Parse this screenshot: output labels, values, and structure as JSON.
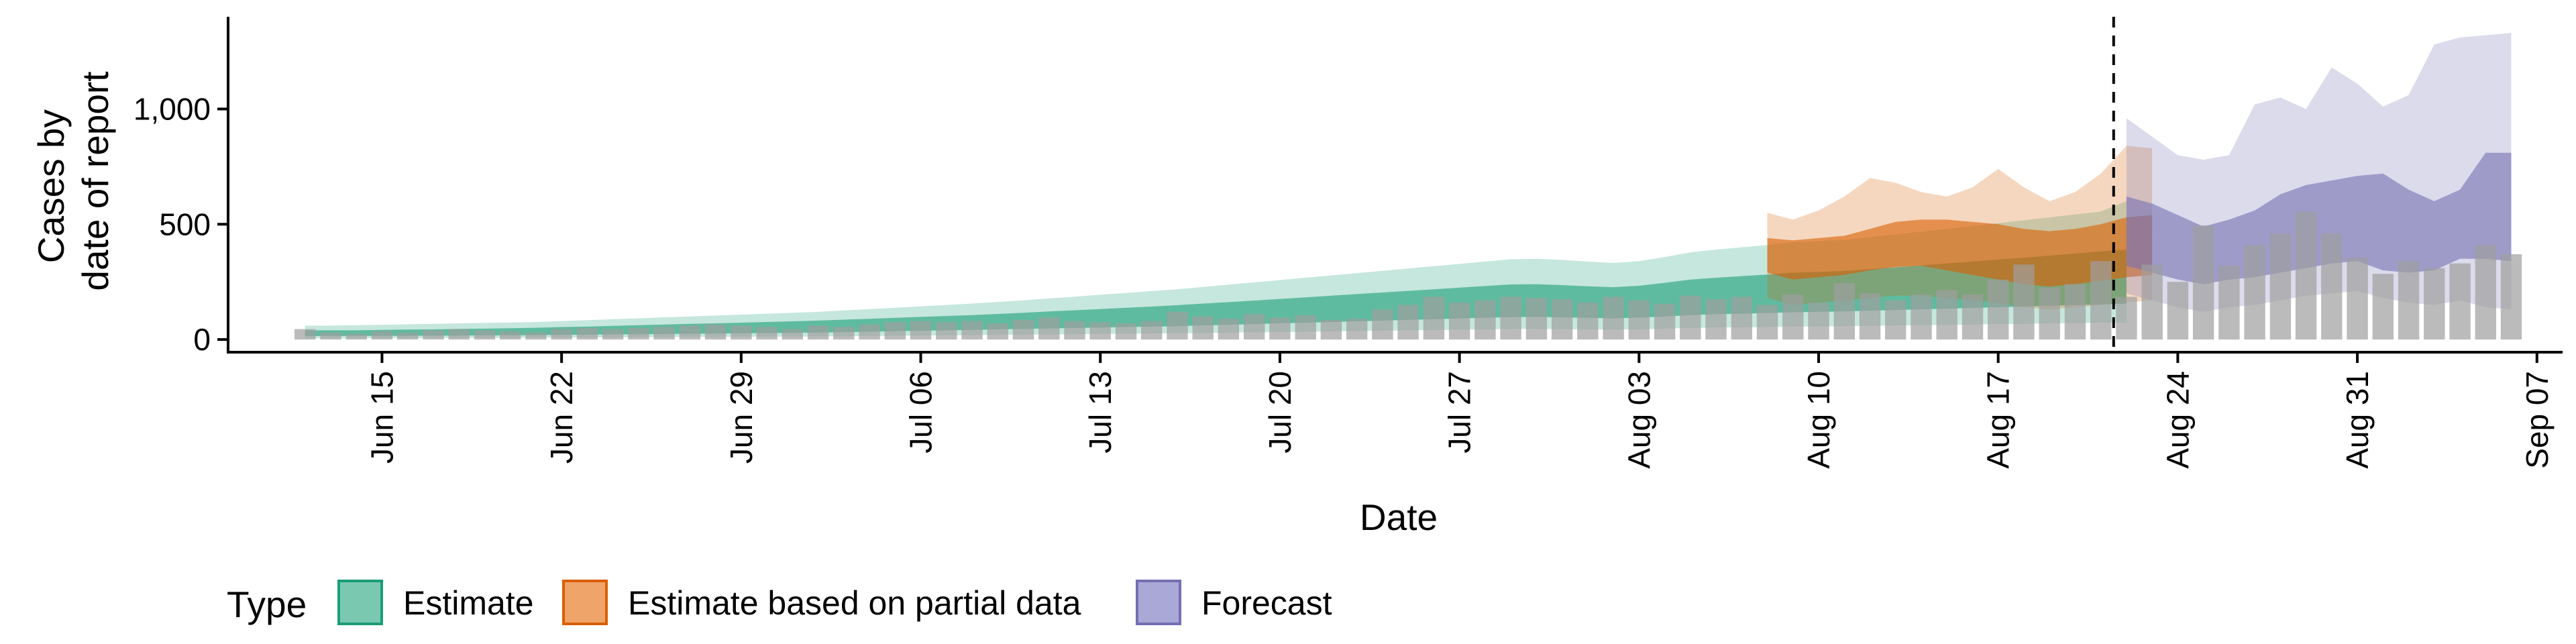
{
  "chart_data": {
    "type": "area",
    "title": "",
    "xlabel": "Date",
    "ylabel_lines": [
      "Cases by",
      "date of report"
    ],
    "ylim": [
      -55,
      1400
    ],
    "yticks": [
      0,
      500,
      1000
    ],
    "ytick_labels": [
      "0",
      "500",
      "1,000"
    ],
    "x_range": [
      "2020-06-09",
      "2020-09-08"
    ],
    "xtick_dates": [
      "2020-06-15",
      "2020-06-22",
      "2020-06-29",
      "2020-07-06",
      "2020-07-13",
      "2020-07-20",
      "2020-07-27",
      "2020-08-03",
      "2020-08-10",
      "2020-08-17",
      "2020-08-24",
      "2020-08-31",
      "2020-09-07"
    ],
    "xtick_labels": [
      "Jun 15",
      "Jun 22",
      "Jun 29",
      "Jul 06",
      "Jul 13",
      "Jul 20",
      "Jul 27",
      "Aug 03",
      "Aug 10",
      "Aug 17",
      "Aug 24",
      "Aug 31",
      "Sep 07"
    ],
    "forecast_start": "2020-08-21",
    "legend": {
      "title": "Type",
      "position": "bottom",
      "entries": [
        {
          "label": "Estimate",
          "fill": "#7BC8B0",
          "stroke": "#1B9E77"
        },
        {
          "label": "Estimate based on partial data",
          "fill": "#EFA46A",
          "stroke": "#D95F02"
        },
        {
          "label": "Forecast",
          "fill": "#AAA8D6",
          "stroke": "#7570B3"
        }
      ]
    },
    "reported_cases": {
      "start": "2020-06-12",
      "color": "#9E9E9E",
      "values": [
        45,
        30,
        25,
        35,
        30,
        40,
        45,
        40,
        35,
        30,
        45,
        50,
        45,
        50,
        55,
        60,
        65,
        60,
        55,
        45,
        60,
        55,
        65,
        75,
        80,
        75,
        80,
        70,
        85,
        95,
        80,
        75,
        70,
        80,
        120,
        100,
        90,
        110,
        95,
        105,
        85,
        90,
        130,
        150,
        185,
        160,
        170,
        185,
        180,
        175,
        160,
        185,
        170,
        155,
        190,
        175,
        185,
        150,
        195,
        160,
        245,
        200,
        170,
        195,
        215,
        195,
        260,
        325,
        225,
        240,
        340,
        185,
        325,
        250,
        495,
        320,
        410,
        460,
        555,
        460,
        355,
        285,
        340,
        310,
        330,
        410,
        370
      ]
    },
    "series": [
      {
        "name": "Estimate",
        "start": "2020-06-12",
        "color": "#1B9E77",
        "inner_alpha": 0.6,
        "outer_alpha": 0.25,
        "median": [
          30,
          30,
          30,
          31,
          32,
          33,
          34,
          35,
          36,
          38,
          40,
          42,
          44,
          46,
          48,
          50,
          52,
          54,
          56,
          58,
          60,
          63,
          66,
          69,
          72,
          75,
          78,
          82,
          86,
          90,
          94,
          98,
          102,
          106,
          110,
          115,
          120,
          125,
          130,
          135,
          140,
          145,
          150,
          155,
          160,
          165,
          170,
          175,
          175,
          172,
          168,
          165,
          170,
          180,
          190,
          195,
          200,
          205,
          210,
          212,
          215,
          220,
          225,
          230,
          235,
          240,
          245,
          250,
          255,
          260,
          265,
          270
        ],
        "lower50": [
          15,
          15,
          15,
          16,
          16,
          17,
          17,
          18,
          18,
          19,
          20,
          21,
          22,
          23,
          24,
          25,
          26,
          27,
          28,
          29,
          30,
          32,
          34,
          36,
          38,
          40,
          42,
          44,
          46,
          48,
          50,
          52,
          54,
          56,
          58,
          61,
          64,
          67,
          70,
          73,
          76,
          79,
          82,
          85,
          88,
          91,
          94,
          97,
          98,
          96,
          94,
          92,
          95,
          100,
          106,
          110,
          112,
          115,
          118,
          120,
          122,
          125,
          128,
          131,
          134,
          137,
          140,
          143,
          146,
          149,
          152,
          155
        ],
        "upper50": [
          40,
          40,
          40,
          42,
          43,
          44,
          46,
          47,
          49,
          51,
          54,
          56,
          59,
          62,
          65,
          68,
          70,
          73,
          76,
          79,
          82,
          86,
          90,
          94,
          98,
          102,
          106,
          111,
          116,
          122,
          127,
          132,
          138,
          143,
          149,
          156,
          162,
          169,
          176,
          183,
          190,
          197,
          204,
          211,
          218,
          225,
          232,
          239,
          240,
          236,
          231,
          227,
          233,
          246,
          260,
          268,
          275,
          282,
          290,
          293,
          297,
          305,
          313,
          321,
          330,
          338,
          347,
          355,
          364,
          373,
          382,
          390
        ],
        "lower90": [
          5,
          5,
          5,
          6,
          6,
          6,
          7,
          7,
          7,
          8,
          8,
          9,
          9,
          10,
          10,
          11,
          11,
          12,
          12,
          13,
          13,
          14,
          15,
          16,
          17,
          18,
          19,
          20,
          21,
          22,
          23,
          24,
          25,
          26,
          27,
          28,
          30,
          31,
          32,
          34,
          35,
          37,
          38,
          40,
          41,
          43,
          44,
          46,
          46,
          45,
          44,
          43,
          44,
          47,
          50,
          52,
          53,
          54,
          56,
          57,
          58,
          59,
          61,
          62,
          64,
          65,
          67,
          68,
          70,
          71,
          73,
          74
        ],
        "upper90": [
          60,
          60,
          62,
          64,
          66,
          68,
          70,
          72,
          74,
          76,
          80,
          84,
          88,
          92,
          96,
          100,
          104,
          108,
          112,
          116,
          120,
          126,
          132,
          138,
          144,
          150,
          156,
          163,
          170,
          178,
          186,
          194,
          202,
          210,
          218,
          228,
          238,
          248,
          258,
          268,
          278,
          288,
          298,
          308,
          318,
          328,
          338,
          348,
          350,
          345,
          338,
          332,
          340,
          358,
          378,
          390,
          400,
          410,
          422,
          427,
          432,
          444,
          456,
          468,
          480,
          492,
          505,
          517,
          530,
          542,
          555,
          600
        ]
      },
      {
        "name": "Estimate based on partial data",
        "start": "2020-08-08",
        "color": "#D95F02",
        "inner_alpha": 0.6,
        "outer_alpha": 0.25,
        "median": [
          380,
          360,
          370,
          380,
          400,
          420,
          430,
          420,
          410,
          390,
          375,
          360,
          370,
          390,
          420,
          440
        ],
        "lower50": [
          290,
          260,
          270,
          280,
          300,
          315,
          320,
          300,
          280,
          260,
          240,
          230,
          240,
          255,
          270,
          280
        ],
        "upper50": [
          440,
          430,
          440,
          450,
          480,
          510,
          520,
          520,
          510,
          500,
          480,
          470,
          480,
          500,
          530,
          540
        ],
        "lower90": [
          180,
          150,
          160,
          170,
          180,
          190,
          190,
          180,
          170,
          160,
          140,
          130,
          140,
          150,
          160,
          170
        ],
        "upper90": [
          550,
          520,
          560,
          620,
          700,
          680,
          640,
          620,
          660,
          740,
          660,
          600,
          640,
          720,
          840,
          830
        ]
      },
      {
        "name": "Forecast",
        "start": "2020-08-22",
        "color": "#7570B3",
        "inner_alpha": 0.6,
        "outer_alpha": 0.25,
        "median": [
          520,
          500,
          460,
          430,
          450,
          470,
          520,
          560,
          580,
          600,
          610,
          580,
          560,
          580,
          620,
          650
        ],
        "lower50": [
          320,
          290,
          260,
          240,
          260,
          270,
          290,
          310,
          330,
          340,
          300,
          290,
          300,
          350,
          350,
          340
        ],
        "upper50": [
          620,
          590,
          540,
          490,
          520,
          560,
          630,
          670,
          690,
          710,
          720,
          650,
          600,
          650,
          810,
          810
        ],
        "lower90": [
          200,
          170,
          140,
          120,
          140,
          150,
          170,
          190,
          200,
          210,
          180,
          160,
          150,
          170,
          140,
          130
        ],
        "upper90": [
          960,
          880,
          800,
          780,
          800,
          1020,
          1050,
          1000,
          1180,
          1110,
          1010,
          1060,
          1280,
          1310,
          1320,
          1330
        ]
      }
    ]
  }
}
